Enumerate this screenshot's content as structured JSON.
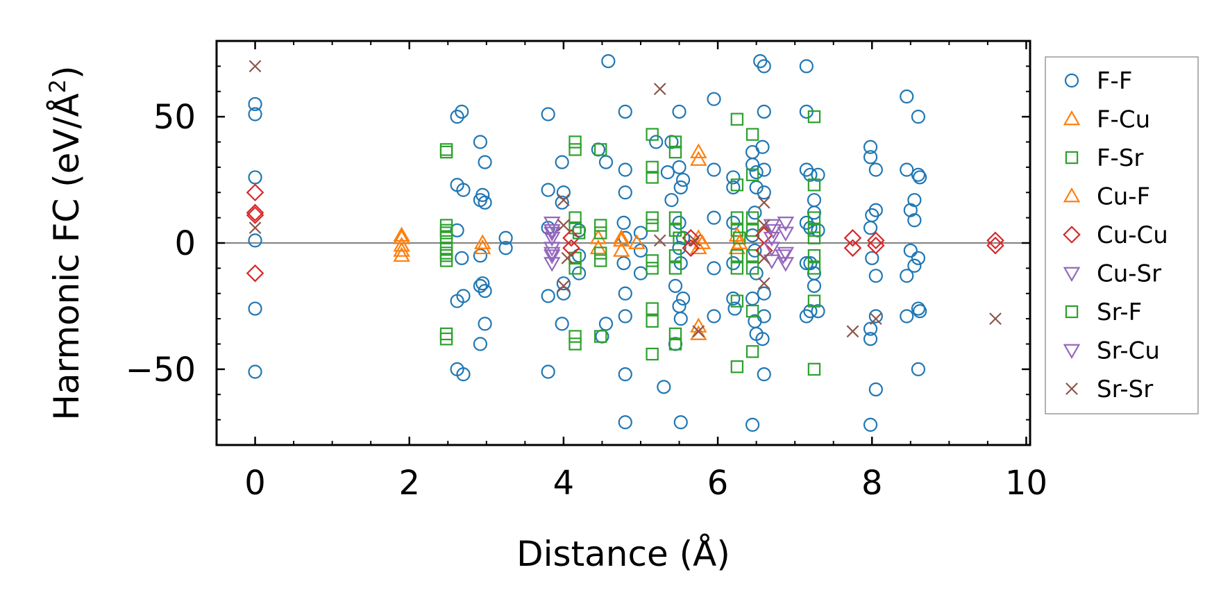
{
  "chart_data": {
    "type": "scatter",
    "xlabel": "Distance (Å)",
    "ylabel": "Harmonic FC (eV/Å",
    "ylabel_superscript": "2",
    "ylabel_close": ")",
    "xlim": [
      -0.5,
      10.05
    ],
    "ylim": [
      -80,
      80
    ],
    "xticks": [
      0,
      2,
      4,
      6,
      8,
      10
    ],
    "xtick_labels": [
      "0",
      "2",
      "4",
      "6",
      "8",
      "10"
    ],
    "yticks": [
      -50,
      0,
      50
    ],
    "ytick_labels": [
      "−50",
      "0",
      "50"
    ],
    "zero_line": true,
    "legend_position": "outside-right",
    "series": [
      {
        "name": "F-F",
        "marker": "circle",
        "color": "#1f77b4",
        "points": [
          [
            0,
            55
          ],
          [
            0,
            51
          ],
          [
            0,
            26
          ],
          [
            0,
            1
          ],
          [
            0,
            -26
          ],
          [
            0,
            -51
          ],
          [
            2.62,
            50
          ],
          [
            2.68,
            52
          ],
          [
            2.62,
            23
          ],
          [
            2.7,
            21
          ],
          [
            2.62,
            5
          ],
          [
            2.68,
            -6
          ],
          [
            2.62,
            -23
          ],
          [
            2.7,
            -21
          ],
          [
            2.62,
            -50
          ],
          [
            2.7,
            -52
          ],
          [
            2.92,
            40
          ],
          [
            2.98,
            32
          ],
          [
            2.95,
            19
          ],
          [
            2.92,
            17
          ],
          [
            2.98,
            16
          ],
          [
            2.92,
            -5
          ],
          [
            2.95,
            -16
          ],
          [
            2.98,
            -19
          ],
          [
            2.92,
            -17
          ],
          [
            2.98,
            -32
          ],
          [
            2.92,
            -40
          ],
          [
            3.25,
            2
          ],
          [
            3.25,
            -2
          ],
          [
            3.8,
            51
          ],
          [
            3.8,
            21
          ],
          [
            3.8,
            6
          ],
          [
            3.8,
            -21
          ],
          [
            3.8,
            -51
          ],
          [
            3.98,
            32
          ],
          [
            4.0,
            20
          ],
          [
            3.98,
            16
          ],
          [
            4.0,
            -16
          ],
          [
            4.0,
            -20
          ],
          [
            3.98,
            -32
          ],
          [
            4.2,
            5
          ],
          [
            4.2,
            -5
          ],
          [
            4.2,
            -12
          ],
          [
            4.45,
            37
          ],
          [
            4.55,
            32
          ],
          [
            4.55,
            -32
          ],
          [
            4.5,
            -37
          ],
          [
            4.58,
            72
          ],
          [
            4.8,
            52
          ],
          [
            4.8,
            29
          ],
          [
            4.8,
            20
          ],
          [
            4.78,
            8
          ],
          [
            4.8,
            2
          ],
          [
            4.78,
            -8
          ],
          [
            4.8,
            -20
          ],
          [
            4.8,
            -29
          ],
          [
            4.8,
            -52
          ],
          [
            4.8,
            -71
          ],
          [
            5.0,
            4
          ],
          [
            5.0,
            -3
          ],
          [
            5.0,
            -12
          ],
          [
            5.2,
            40
          ],
          [
            5.3,
            -57
          ],
          [
            5.35,
            28
          ],
          [
            5.4,
            40
          ],
          [
            5.4,
            17
          ],
          [
            5.45,
            -17
          ],
          [
            5.45,
            -40
          ],
          [
            5.5,
            52
          ],
          [
            5.5,
            30
          ],
          [
            5.55,
            25
          ],
          [
            5.52,
            22
          ],
          [
            5.5,
            8
          ],
          [
            5.55,
            2
          ],
          [
            5.5,
            -2
          ],
          [
            5.52,
            -8
          ],
          [
            5.55,
            -22
          ],
          [
            5.5,
            -25
          ],
          [
            5.52,
            -30
          ],
          [
            5.52,
            -71
          ],
          [
            5.95,
            57
          ],
          [
            5.95,
            29
          ],
          [
            5.95,
            10
          ],
          [
            5.95,
            -10
          ],
          [
            5.95,
            -29
          ],
          [
            6.2,
            26
          ],
          [
            6.2,
            22
          ],
          [
            6.2,
            8
          ],
          [
            6.2,
            -8
          ],
          [
            6.2,
            -22
          ],
          [
            6.22,
            -26
          ],
          [
            6.45,
            36
          ],
          [
            6.45,
            31
          ],
          [
            6.5,
            28
          ],
          [
            6.5,
            22
          ],
          [
            6.48,
            12
          ],
          [
            6.45,
            3
          ],
          [
            6.48,
            -3
          ],
          [
            6.5,
            -12
          ],
          [
            6.45,
            -22
          ],
          [
            6.48,
            -31
          ],
          [
            6.5,
            -36
          ],
          [
            6.45,
            -72
          ],
          [
            6.55,
            72
          ],
          [
            6.6,
            70
          ],
          [
            6.6,
            52
          ],
          [
            6.58,
            38
          ],
          [
            6.6,
            29
          ],
          [
            6.6,
            20
          ],
          [
            6.6,
            -20
          ],
          [
            6.6,
            -29
          ],
          [
            6.58,
            -38
          ],
          [
            6.6,
            -52
          ],
          [
            7.15,
            70
          ],
          [
            7.15,
            52
          ],
          [
            7.15,
            29
          ],
          [
            7.2,
            27
          ],
          [
            7.15,
            8
          ],
          [
            7.2,
            6
          ],
          [
            7.15,
            -8
          ],
          [
            7.2,
            -27
          ],
          [
            7.15,
            -29
          ],
          [
            7.2,
            -8
          ],
          [
            7.25,
            17
          ],
          [
            7.25,
            12
          ],
          [
            7.25,
            -12
          ],
          [
            7.25,
            -17
          ],
          [
            7.3,
            27
          ],
          [
            7.3,
            -27
          ],
          [
            7.3,
            5
          ],
          [
            7.98,
            38
          ],
          [
            7.98,
            34
          ],
          [
            8.0,
            11
          ],
          [
            8.05,
            29
          ],
          [
            8.05,
            13
          ],
          [
            7.98,
            6
          ],
          [
            8.0,
            -6
          ],
          [
            8.05,
            -13
          ],
          [
            7.98,
            -34
          ],
          [
            8.05,
            -29
          ],
          [
            7.98,
            -38
          ],
          [
            7.98,
            -72
          ],
          [
            8.05,
            -58
          ],
          [
            8.45,
            58
          ],
          [
            8.45,
            29
          ],
          [
            8.5,
            13
          ],
          [
            8.55,
            17
          ],
          [
            8.55,
            9
          ],
          [
            8.45,
            -13
          ],
          [
            8.55,
            -9
          ],
          [
            8.5,
            -3
          ],
          [
            8.45,
            -29
          ],
          [
            8.6,
            50
          ],
          [
            8.6,
            27
          ],
          [
            8.62,
            26
          ],
          [
            8.6,
            -6
          ],
          [
            8.6,
            -26
          ],
          [
            8.62,
            -27
          ],
          [
            8.6,
            -50
          ]
        ]
      },
      {
        "name": "F-Cu",
        "marker": "triangle-up",
        "color": "#ff7f0e",
        "points": [
          [
            1.9,
            3
          ],
          [
            1.9,
            -1
          ],
          [
            1.9,
            -5
          ],
          [
            2.95,
            0
          ],
          [
            2.95,
            -2
          ],
          [
            4.45,
            2
          ],
          [
            4.45,
            -2
          ],
          [
            4.75,
            2
          ],
          [
            4.75,
            -3
          ],
          [
            4.95,
            0
          ],
          [
            5.75,
            36
          ],
          [
            5.75,
            33
          ],
          [
            5.75,
            -33
          ],
          [
            5.75,
            -36
          ],
          [
            5.75,
            2
          ],
          [
            5.75,
            -2
          ],
          [
            6.25,
            3
          ],
          [
            6.25,
            -2
          ]
        ]
      },
      {
        "name": "F-Sr",
        "marker": "square",
        "color": "#2ca02c",
        "points": [
          [
            2.48,
            37
          ],
          [
            2.48,
            36
          ],
          [
            2.48,
            7
          ],
          [
            2.48,
            5
          ],
          [
            2.48,
            2
          ],
          [
            2.48,
            -2
          ],
          [
            2.48,
            -5
          ],
          [
            2.48,
            -7
          ],
          [
            2.48,
            -36
          ],
          [
            2.48,
            -38
          ],
          [
            4.15,
            40
          ],
          [
            4.15,
            37
          ],
          [
            4.15,
            10
          ],
          [
            4.15,
            6
          ],
          [
            4.15,
            -6
          ],
          [
            4.15,
            -10
          ],
          [
            4.15,
            -37
          ],
          [
            4.15,
            -40
          ],
          [
            4.48,
            37
          ],
          [
            4.48,
            7
          ],
          [
            4.48,
            4
          ],
          [
            4.48,
            -4
          ],
          [
            4.48,
            -7
          ],
          [
            4.48,
            -37
          ],
          [
            5.15,
            43
          ],
          [
            5.15,
            30
          ],
          [
            5.15,
            26
          ],
          [
            5.15,
            10
          ],
          [
            5.15,
            7
          ],
          [
            5.15,
            -7
          ],
          [
            5.15,
            -10
          ],
          [
            5.15,
            -26
          ],
          [
            5.15,
            -31
          ],
          [
            5.15,
            -44
          ],
          [
            5.45,
            40
          ],
          [
            5.45,
            36
          ],
          [
            5.45,
            10
          ],
          [
            5.45,
            5
          ],
          [
            5.45,
            -5
          ],
          [
            5.45,
            -10
          ],
          [
            5.45,
            -36
          ],
          [
            5.45,
            -40
          ],
          [
            6.25,
            49
          ],
          [
            6.25,
            23
          ],
          [
            6.25,
            10
          ],
          [
            6.25,
            5
          ],
          [
            6.25,
            -5
          ],
          [
            6.25,
            -10
          ],
          [
            6.25,
            -23
          ],
          [
            6.25,
            -49
          ],
          [
            6.45,
            43
          ],
          [
            6.45,
            27
          ],
          [
            6.45,
            10
          ],
          [
            6.45,
            5
          ],
          [
            6.45,
            -5
          ],
          [
            6.45,
            -10
          ],
          [
            6.45,
            -27
          ],
          [
            6.45,
            -43
          ],
          [
            7.25,
            50
          ],
          [
            7.25,
            23
          ],
          [
            7.25,
            10
          ],
          [
            7.25,
            5
          ],
          [
            7.25,
            -5
          ],
          [
            7.25,
            -10
          ],
          [
            7.25,
            -23
          ],
          [
            7.25,
            -50
          ]
        ]
      },
      {
        "name": "Cu-F",
        "marker": "triangle-up",
        "color": "#ff7f0e",
        "points": [
          [
            1.9,
            2
          ],
          [
            1.9,
            -3
          ],
          [
            4.75,
            1
          ],
          [
            5.8,
            0
          ],
          [
            6.28,
            0
          ]
        ]
      },
      {
        "name": "Cu-Cu",
        "marker": "diamond",
        "color": "#d62728",
        "points": [
          [
            0,
            20
          ],
          [
            0,
            12
          ],
          [
            0,
            11
          ],
          [
            0,
            -12
          ],
          [
            4.1,
            2
          ],
          [
            4.1,
            -2
          ],
          [
            5.65,
            2
          ],
          [
            5.65,
            -2
          ],
          [
            6.6,
            3
          ],
          [
            6.6,
            -3
          ],
          [
            7.75,
            2
          ],
          [
            7.75,
            -2
          ],
          [
            8.05,
            1
          ],
          [
            8.05,
            -1
          ],
          [
            9.6,
            1
          ],
          [
            9.6,
            -1
          ]
        ]
      },
      {
        "name": "Cu-Sr",
        "marker": "triangle-down",
        "color": "#9467bd",
        "points": [
          [
            3.85,
            8
          ],
          [
            3.85,
            5
          ],
          [
            3.85,
            2
          ],
          [
            3.85,
            -2
          ],
          [
            3.85,
            -5
          ],
          [
            3.85,
            -8
          ],
          [
            6.7,
            7
          ],
          [
            6.7,
            2
          ],
          [
            6.7,
            -2
          ],
          [
            6.7,
            -7
          ],
          [
            6.88,
            8
          ],
          [
            6.88,
            4
          ],
          [
            6.88,
            -4
          ],
          [
            6.88,
            -8
          ]
        ]
      },
      {
        "name": "Sr-F",
        "marker": "square",
        "color": "#2ca02c",
        "points": [
          [
            2.48,
            4
          ],
          [
            2.48,
            -4
          ],
          [
            4.2,
            4
          ],
          [
            5.5,
            2
          ],
          [
            6.28,
            2
          ],
          [
            7.25,
            2
          ]
        ]
      },
      {
        "name": "Sr-Cu",
        "marker": "triangle-down",
        "color": "#9467bd",
        "points": [
          [
            3.85,
            4
          ],
          [
            3.85,
            -4
          ],
          [
            6.72,
            5
          ],
          [
            6.85,
            -5
          ]
        ]
      },
      {
        "name": "Sr-Sr",
        "marker": "x",
        "color": "#8c564b",
        "points": [
          [
            0,
            70
          ],
          [
            0,
            6
          ],
          [
            4.0,
            17
          ],
          [
            4.0,
            -17
          ],
          [
            4.0,
            7
          ],
          [
            4.05,
            -6
          ],
          [
            5.25,
            61
          ],
          [
            5.25,
            1
          ],
          [
            5.7,
            1
          ],
          [
            5.75,
            -35
          ],
          [
            6.6,
            16
          ],
          [
            6.6,
            7
          ],
          [
            6.6,
            -16
          ],
          [
            6.6,
            -6
          ],
          [
            7.75,
            -35
          ],
          [
            8.05,
            -30
          ],
          [
            9.6,
            -30
          ]
        ]
      }
    ]
  }
}
